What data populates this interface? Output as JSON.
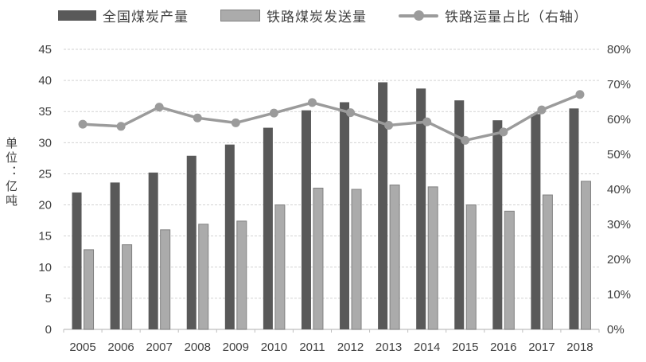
{
  "chart_data": {
    "type": "bar",
    "title": "",
    "categories": [
      "2005",
      "2006",
      "2007",
      "2008",
      "2009",
      "2010",
      "2011",
      "2012",
      "2013",
      "2014",
      "2015",
      "2016",
      "2017",
      "2018"
    ],
    "series": [
      {
        "name": "全国煤炭产量",
        "type": "bar",
        "axis": "left",
        "color": "#595959",
        "values": [
          22.0,
          23.6,
          25.2,
          27.9,
          29.7,
          32.4,
          35.2,
          36.5,
          39.7,
          38.7,
          36.8,
          33.6,
          34.6,
          35.5
        ]
      },
      {
        "name": "铁路煤炭发送量",
        "type": "bar",
        "axis": "left",
        "color": "#ababab",
        "border_color": "#808080",
        "values": [
          12.8,
          13.6,
          16.0,
          16.9,
          17.4,
          20.0,
          22.7,
          22.5,
          23.2,
          22.9,
          20.0,
          19.0,
          21.6,
          23.8
        ]
      },
      {
        "name": "铁路运量占比（右轴）",
        "type": "line",
        "axis": "right",
        "color": "#9b9b9b",
        "values": [
          58.6,
          58.0,
          63.5,
          60.4,
          59.0,
          61.8,
          64.8,
          61.9,
          58.3,
          59.3,
          54.0,
          56.4,
          62.7,
          67.1
        ]
      }
    ],
    "left_axis": {
      "title": "单位：亿吨",
      "min": 0,
      "max": 45,
      "step": 5,
      "tick_labels": [
        "0",
        "5",
        "10",
        "15",
        "20",
        "25",
        "30",
        "35",
        "40",
        "45"
      ]
    },
    "right_axis": {
      "min": 0,
      "max": 80,
      "step": 10,
      "tick_labels": [
        "0%",
        "10%",
        "20%",
        "30%",
        "40%",
        "50%",
        "60%",
        "70%",
        "80%"
      ]
    },
    "grid": "horizontal-dashed",
    "legend_position": "top",
    "colors": {
      "text": "#404040",
      "gridline": "#d2d2d2",
      "axis_line": "#bfbfbf",
      "background": "#ffffff"
    }
  }
}
